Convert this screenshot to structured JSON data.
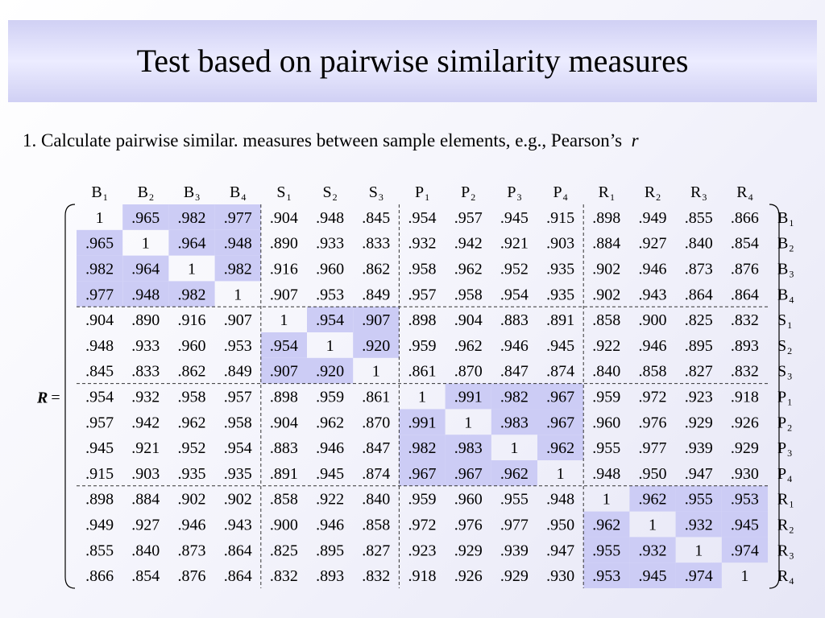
{
  "title": "Test based on pairwise similarity measures",
  "bullet": {
    "text": "1. Calculate pairwise similar. measures between sample elements, e.g., Pearson’s",
    "symbol": "r"
  },
  "matrix": {
    "lhs_symbol": "R",
    "equals": "=",
    "labels": [
      {
        "letter": "B",
        "index": "1"
      },
      {
        "letter": "B",
        "index": "2"
      },
      {
        "letter": "B",
        "index": "3"
      },
      {
        "letter": "B",
        "index": "4"
      },
      {
        "letter": "S",
        "index": "1"
      },
      {
        "letter": "S",
        "index": "2"
      },
      {
        "letter": "S",
        "index": "3"
      },
      {
        "letter": "P",
        "index": "1"
      },
      {
        "letter": "P",
        "index": "2"
      },
      {
        "letter": "P",
        "index": "3"
      },
      {
        "letter": "P",
        "index": "4"
      },
      {
        "letter": "R",
        "index": "1"
      },
      {
        "letter": "R",
        "index": "2"
      },
      {
        "letter": "R",
        "index": "3"
      },
      {
        "letter": "R",
        "index": "4"
      }
    ],
    "groups": [
      4,
      3,
      4,
      4
    ],
    "highlight_color": "#ccccf5",
    "rows": [
      [
        "1",
        ".965",
        ".982",
        ".977",
        ".904",
        ".948",
        ".845",
        ".954",
        ".957",
        ".945",
        ".915",
        ".898",
        ".949",
        ".855",
        ".866"
      ],
      [
        ".965",
        "1",
        ".964",
        ".948",
        ".890",
        ".933",
        ".833",
        ".932",
        ".942",
        ".921",
        ".903",
        ".884",
        ".927",
        ".840",
        ".854"
      ],
      [
        ".982",
        ".964",
        "1",
        ".982",
        ".916",
        ".960",
        ".862",
        ".958",
        ".962",
        ".952",
        ".935",
        ".902",
        ".946",
        ".873",
        ".876"
      ],
      [
        ".977",
        ".948",
        ".982",
        "1",
        ".907",
        ".953",
        ".849",
        ".957",
        ".958",
        ".954",
        ".935",
        ".902",
        ".943",
        ".864",
        ".864"
      ],
      [
        ".904",
        ".890",
        ".916",
        ".907",
        "1",
        ".954",
        ".907",
        ".898",
        ".904",
        ".883",
        ".891",
        ".858",
        ".900",
        ".825",
        ".832"
      ],
      [
        ".948",
        ".933",
        ".960",
        ".953",
        ".954",
        "1",
        ".920",
        ".959",
        ".962",
        ".946",
        ".945",
        ".922",
        ".946",
        ".895",
        ".893"
      ],
      [
        ".845",
        ".833",
        ".862",
        ".849",
        ".907",
        ".920",
        "1",
        ".861",
        ".870",
        ".847",
        ".874",
        ".840",
        ".858",
        ".827",
        ".832"
      ],
      [
        ".954",
        ".932",
        ".958",
        ".957",
        ".898",
        ".959",
        ".861",
        "1",
        ".991",
        ".982",
        ".967",
        ".959",
        ".972",
        ".923",
        ".918"
      ],
      [
        ".957",
        ".942",
        ".962",
        ".958",
        ".904",
        ".962",
        ".870",
        ".991",
        "1",
        ".983",
        ".967",
        ".960",
        ".976",
        ".929",
        ".926"
      ],
      [
        ".945",
        ".921",
        ".952",
        ".954",
        ".883",
        ".946",
        ".847",
        ".982",
        ".983",
        "1",
        ".962",
        ".955",
        ".977",
        ".939",
        ".929"
      ],
      [
        ".915",
        ".903",
        ".935",
        ".935",
        ".891",
        ".945",
        ".874",
        ".967",
        ".967",
        ".962",
        "1",
        ".948",
        ".950",
        ".947",
        ".930"
      ],
      [
        ".898",
        ".884",
        ".902",
        ".902",
        ".858",
        ".922",
        ".840",
        ".959",
        ".960",
        ".955",
        ".948",
        "1",
        ".962",
        ".955",
        ".953"
      ],
      [
        ".949",
        ".927",
        ".946",
        ".943",
        ".900",
        ".946",
        ".858",
        ".972",
        ".976",
        ".977",
        ".950",
        ".962",
        "1",
        ".932",
        ".945"
      ],
      [
        ".855",
        ".840",
        ".873",
        ".864",
        ".825",
        ".895",
        ".827",
        ".923",
        ".929",
        ".939",
        ".947",
        ".955",
        ".932",
        "1",
        ".974"
      ],
      [
        ".866",
        ".854",
        ".876",
        ".864",
        ".832",
        ".893",
        ".832",
        ".918",
        ".926",
        ".929",
        ".930",
        ".953",
        ".945",
        ".974",
        "1"
      ]
    ]
  }
}
